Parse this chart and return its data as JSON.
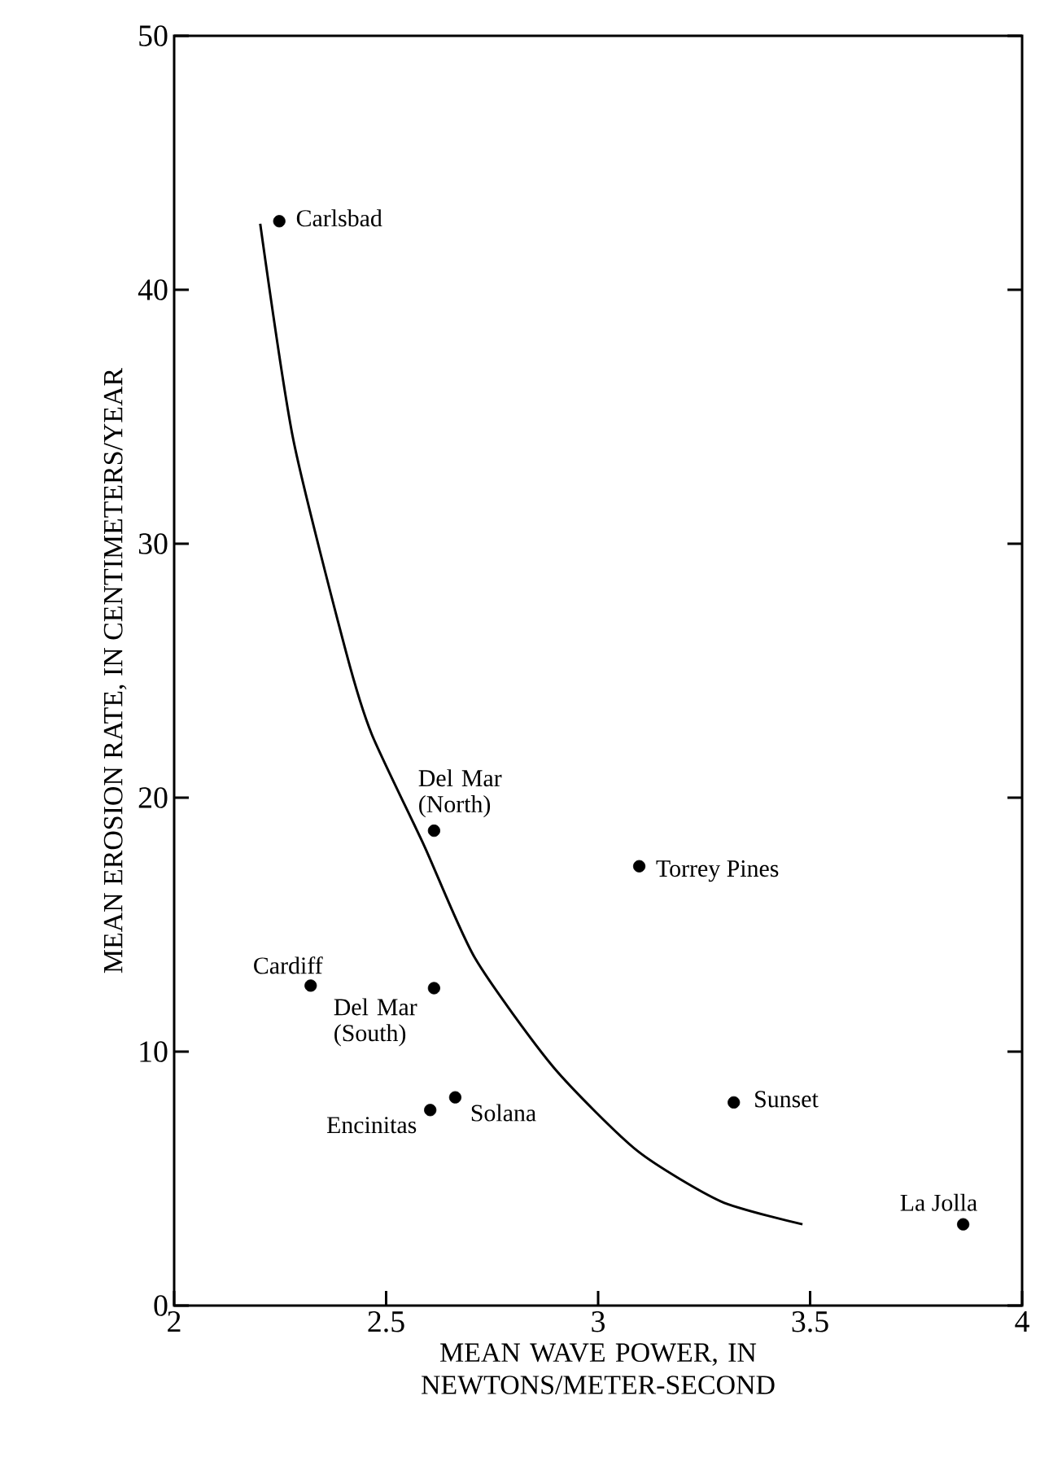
{
  "chart_data": {
    "type": "scatter",
    "xlabel": "MEAN WAVE POWER, IN NEWTONS/METER-SECOND",
    "ylabel": "MEAN EROSION RATE, IN CENTIMETERS/YEAR",
    "xlim": [
      2,
      4
    ],
    "ylim": [
      0,
      50
    ],
    "xticks": [
      2,
      2.5,
      3,
      3.5,
      4
    ],
    "yticks": [
      0,
      10,
      20,
      30,
      40,
      50
    ],
    "series": [
      {
        "marker": "circle",
        "color": "#000000",
        "x": [
          2.248,
          2.613,
          3.097,
          2.322,
          2.613,
          2.604,
          2.663,
          3.32,
          3.861
        ],
        "values": [
          42.7,
          18.7,
          17.3,
          12.6,
          12.5,
          7.7,
          8.2,
          8.0,
          3.2
        ]
      },
      {
        "type": "line",
        "marker": "none",
        "color": "#000000",
        "x": [
          2.203,
          2.281,
          2.406,
          2.466,
          2.59,
          2.709,
          2.894,
          3.092,
          3.29,
          3.482
        ],
        "values": [
          42.6,
          34.1,
          25.7,
          22.5,
          18.1,
          13.7,
          9.4,
          6.1,
          4.1,
          3.2
        ]
      }
    ],
    "annotations": [
      {
        "text": "Carlsbad",
        "x": 2.248,
        "y": 42.7
      },
      {
        "text": "Del Mar (North)",
        "x": 2.613,
        "y": 18.7
      },
      {
        "text": "Torrey Pines",
        "x": 3.097,
        "y": 17.3
      },
      {
        "text": "Cardiff",
        "x": 2.322,
        "y": 12.6
      },
      {
        "text": "Del Mar (South)",
        "x": 2.613,
        "y": 12.5
      },
      {
        "text": "Encinitas",
        "x": 2.604,
        "y": 7.7
      },
      {
        "text": "Solana",
        "x": 2.663,
        "y": 8.2
      },
      {
        "text": "Sunset",
        "x": 3.32,
        "y": 8.0
      },
      {
        "text": "La Jolla",
        "x": 3.861,
        "y": 3.2
      }
    ]
  }
}
